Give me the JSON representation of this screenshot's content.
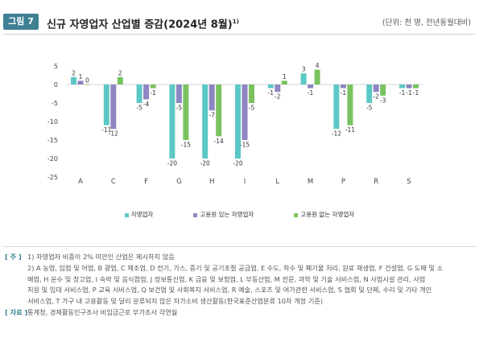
{
  "header": {
    "badge": "그림 7",
    "title": "신규 자영업자 산업별 증감(2024년 8월)",
    "title_sup": "1)",
    "unit": "(단위: 천 명, 전년동월대비)"
  },
  "chart_data": {
    "type": "bar",
    "title": "신규 자영업자 산업별 증감(2024년 8월)",
    "unit": "천 명, 전년동월대비",
    "categories": [
      "A",
      "C",
      "F",
      "G",
      "H",
      "I",
      "L",
      "M",
      "P",
      "R",
      "S"
    ],
    "series": [
      {
        "name": "자영업자",
        "color": "#5bc8c6",
        "values": [
          2,
          -11,
          -5,
          -20,
          -20,
          -20,
          -1,
          3,
          -12,
          -5,
          -1
        ]
      },
      {
        "name": "고용원 있는 자영업자",
        "color": "#8e86c2",
        "values": [
          1,
          -12,
          -4,
          -5,
          -7,
          -15,
          -2,
          -1,
          -1,
          -2,
          -1
        ]
      },
      {
        "name": "고용원 없는 자영업자",
        "color": "#79c25f",
        "values": [
          0,
          2,
          -1,
          -15,
          -14,
          -5,
          1,
          4,
          -11,
          -3,
          -1
        ]
      }
    ],
    "ylim": [
      -25,
      5
    ],
    "yticks": [
      5,
      0,
      -5,
      -10,
      -15,
      -20,
      -25
    ],
    "grid": false,
    "legend": "bottom"
  },
  "notes": {
    "note_tag": "[ 주 ]",
    "note1": "1) 자영업자 비중이 2% 미만인 산업은 제시하지 않음",
    "note2_lines": [
      "2) A 농업, 임업 및 어업, B 광업, C 제조업, D 전기, 가스, 증기 및 공기조절 공급업, E 수도, 하수 및 폐기물 처리, 원료 재생업, F 건설업, G 도매 및 소",
      "매업, H 운수 및 창고업, I 숙박 및 음식점업, J 정보통신업, K 금융 및 보험업, L 부동산업, M 전문, 과학 및 기술 서비스업, N 사업시설 관리, 사업",
      "지원 및 임대 서비스업, P 교육 서비스업, Q 보건업 및 사회복지 서비스업, R 예술, 스포츠 및 여가관련 서비스업, S 협회 및 단체, 수리 및 기타 개인",
      "서비스업, T 가구 내 고용활동 및 달리 분류되지 않은 자가소비 생산활동(한국표준산업분류 10차 개정 기준)"
    ],
    "source_tag": "[ 자료 ]",
    "source": "통계청, 경제활동인구조사 비임금근로 부가조사 각연월"
  }
}
